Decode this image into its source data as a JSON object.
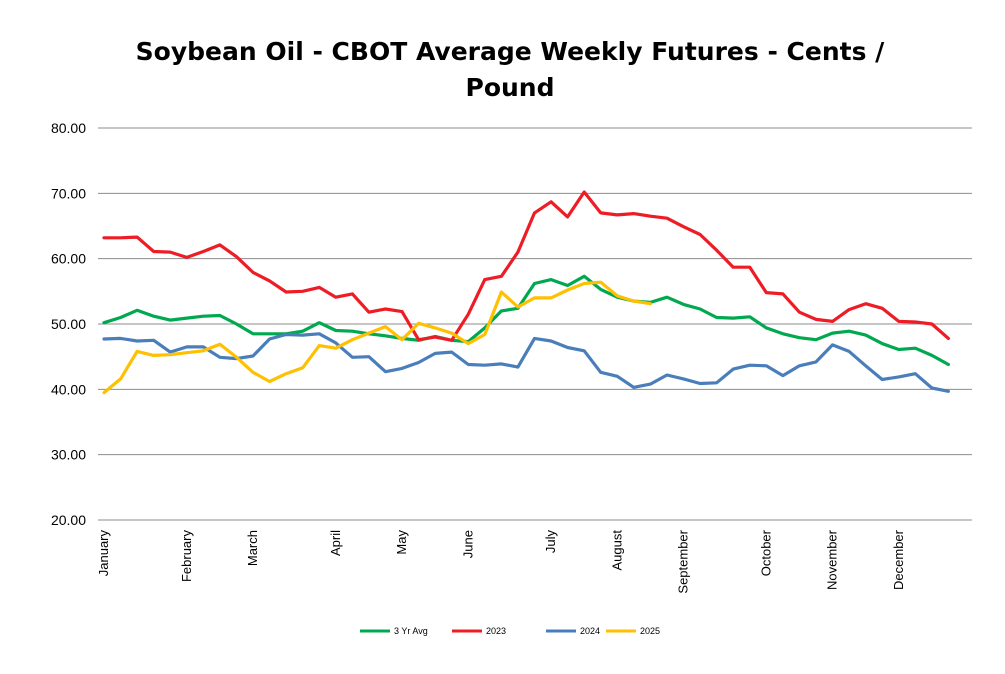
{
  "chart_data": {
    "type": "line",
    "title_lines": [
      "Soybean Oil - CBOT Average Weekly Futures - Cents /",
      "Pound"
    ],
    "ylim": [
      20,
      80
    ],
    "yticks": [
      "20.00",
      "30.00",
      "40.00",
      "50.00",
      "60.00",
      "70.00",
      "80.00"
    ],
    "grid": true,
    "legend_position": "bottom",
    "x_week_count": 53,
    "months": [
      {
        "label": "January",
        "week": 0
      },
      {
        "label": "February",
        "week": 5
      },
      {
        "label": "March",
        "week": 9
      },
      {
        "label": "April",
        "week": 14
      },
      {
        "label": "May",
        "week": 18
      },
      {
        "label": "June",
        "week": 22
      },
      {
        "label": "July",
        "week": 27
      },
      {
        "label": "August",
        "week": 31
      },
      {
        "label": "September",
        "week": 35
      },
      {
        "label": "October",
        "week": 40
      },
      {
        "label": "November",
        "week": 44
      },
      {
        "label": "December",
        "week": 48
      }
    ],
    "series": [
      {
        "name": "3 Yr Avg",
        "color": "#00a84f",
        "values": [
          50.2,
          51.0,
          52.1,
          51.2,
          50.6,
          50.9,
          51.2,
          51.3,
          50.0,
          48.5,
          48.5,
          48.5,
          48.9,
          50.2,
          49.0,
          48.9,
          48.5,
          48.2,
          47.8,
          47.5,
          48.1,
          47.5,
          47.3,
          49.4,
          52.0,
          52.4,
          56.2,
          56.8,
          55.9,
          57.3,
          55.3,
          54.1,
          53.5,
          53.3,
          54.1,
          53.0,
          52.3,
          51.0,
          50.9,
          51.1,
          49.4,
          48.5,
          47.9,
          47.6,
          48.6,
          48.9,
          48.3,
          47.0,
          46.1,
          46.3,
          45.2,
          43.8
        ]
      },
      {
        "name": "2023",
        "color": "#ee1c25",
        "values": [
          63.2,
          63.2,
          63.3,
          61.1,
          61.0,
          60.2,
          61.1,
          62.1,
          60.3,
          57.9,
          56.6,
          54.9,
          55.0,
          55.6,
          54.1,
          54.6,
          51.8,
          52.3,
          51.9,
          47.6,
          48.0,
          47.5,
          51.5,
          56.8,
          57.3,
          61.0,
          67.0,
          68.7,
          66.4,
          70.2,
          67.0,
          66.7,
          66.9,
          66.5,
          66.2,
          64.9,
          63.7,
          61.3,
          58.7,
          58.7,
          54.8,
          54.6,
          51.8,
          50.7,
          50.4,
          52.2,
          53.1,
          52.4,
          50.4,
          50.3,
          50.0,
          47.8
        ]
      },
      {
        "name": "2024",
        "color": "#4a7ebb",
        "values": [
          47.7,
          47.8,
          47.4,
          47.5,
          45.7,
          46.5,
          46.5,
          44.9,
          44.7,
          45.1,
          47.7,
          48.4,
          48.3,
          48.5,
          47.1,
          44.9,
          45.0,
          42.7,
          43.2,
          44.1,
          45.5,
          45.7,
          43.8,
          43.7,
          43.9,
          43.4,
          47.8,
          47.4,
          46.4,
          45.9,
          42.6,
          42.0,
          40.3,
          40.8,
          42.2,
          41.6,
          40.9,
          41.0,
          43.1,
          43.7,
          43.6,
          42.1,
          43.6,
          44.2,
          46.8,
          45.8,
          43.6,
          41.5,
          41.9,
          42.4,
          40.2,
          39.7
        ]
      },
      {
        "name": "2025",
        "color": "#fec000",
        "values": [
          39.5,
          41.6,
          45.8,
          45.2,
          45.3,
          45.6,
          45.9,
          46.9,
          44.9,
          42.6,
          41.2,
          42.4,
          43.3,
          46.7,
          46.3,
          47.6,
          48.6,
          49.6,
          47.6,
          50.1,
          49.4,
          48.6,
          47.0,
          48.4,
          54.9,
          52.6,
          54.0,
          54.0,
          55.2,
          56.2,
          56.4,
          54.3,
          53.5,
          53.1
        ]
      }
    ]
  }
}
